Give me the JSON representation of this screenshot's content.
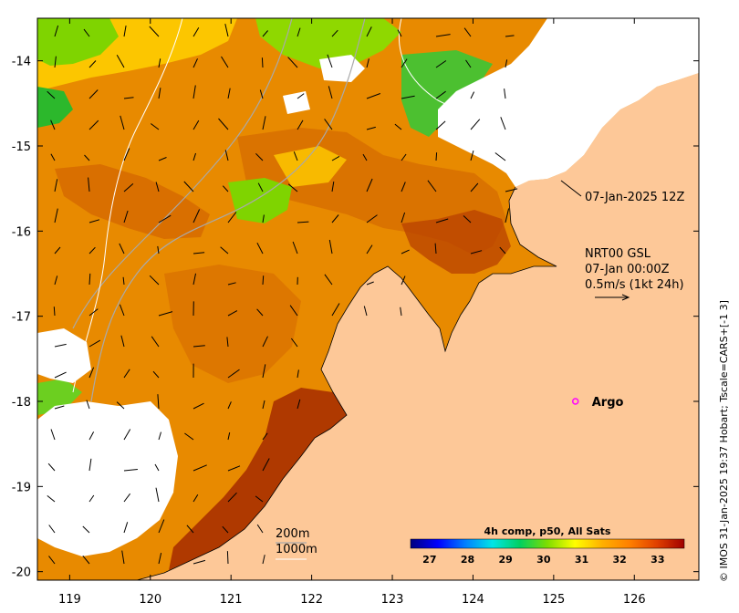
{
  "map": {
    "xlim": [
      118.6,
      126.8
    ],
    "ylim": [
      -20.1,
      -13.5
    ],
    "x_ticks": [
      "119",
      "120",
      "121",
      "122",
      "123",
      "124",
      "125",
      "126"
    ],
    "x_tick_values": [
      119,
      120,
      121,
      122,
      123,
      124,
      125,
      126
    ],
    "y_ticks": [
      "-14",
      "-15",
      "-16",
      "-17",
      "-18",
      "-19",
      "-20"
    ],
    "y_tick_values": [
      -14,
      -15,
      -16,
      -17,
      -18,
      -19,
      -20
    ],
    "land_color": "#fdc898",
    "cloud_color": "#ffffff",
    "current_arrow_color": "#000000",
    "contour_200m_color": "#a9a9a9",
    "contour_1000m_color": "#ffffff"
  },
  "annotations": {
    "overpass_time": "07-Jan-2025 12Z",
    "current_product": "NRT00 GSL",
    "current_time": "07-Jan 00:00Z",
    "current_scale": "0.5m/s (1kt 24h)",
    "contour_200m": "200m",
    "contour_1000m": "1000m"
  },
  "argo": {
    "label": "Argo",
    "lon": 125.27,
    "lat": -18.0,
    "marker_color": "#ff00ff"
  },
  "colorbar": {
    "title": "4h comp, p50, All Sats",
    "min": 26.5,
    "max": 33.7,
    "ticks": [
      "27",
      "28",
      "29",
      "30",
      "31",
      "32",
      "33"
    ],
    "tick_values": [
      27,
      28,
      29,
      30,
      31,
      32,
      33
    ],
    "colors": [
      "#00007f",
      "#0000ff",
      "#007fff",
      "#00e5e5",
      "#00d060",
      "#7fdd00",
      "#ffff00",
      "#ffb000",
      "#ff7f00",
      "#e04000",
      "#a00000"
    ]
  },
  "credit": "© IMOS 31-Jan-2025 19:37 Hobart; Tscale=CARS+[-1 3]"
}
